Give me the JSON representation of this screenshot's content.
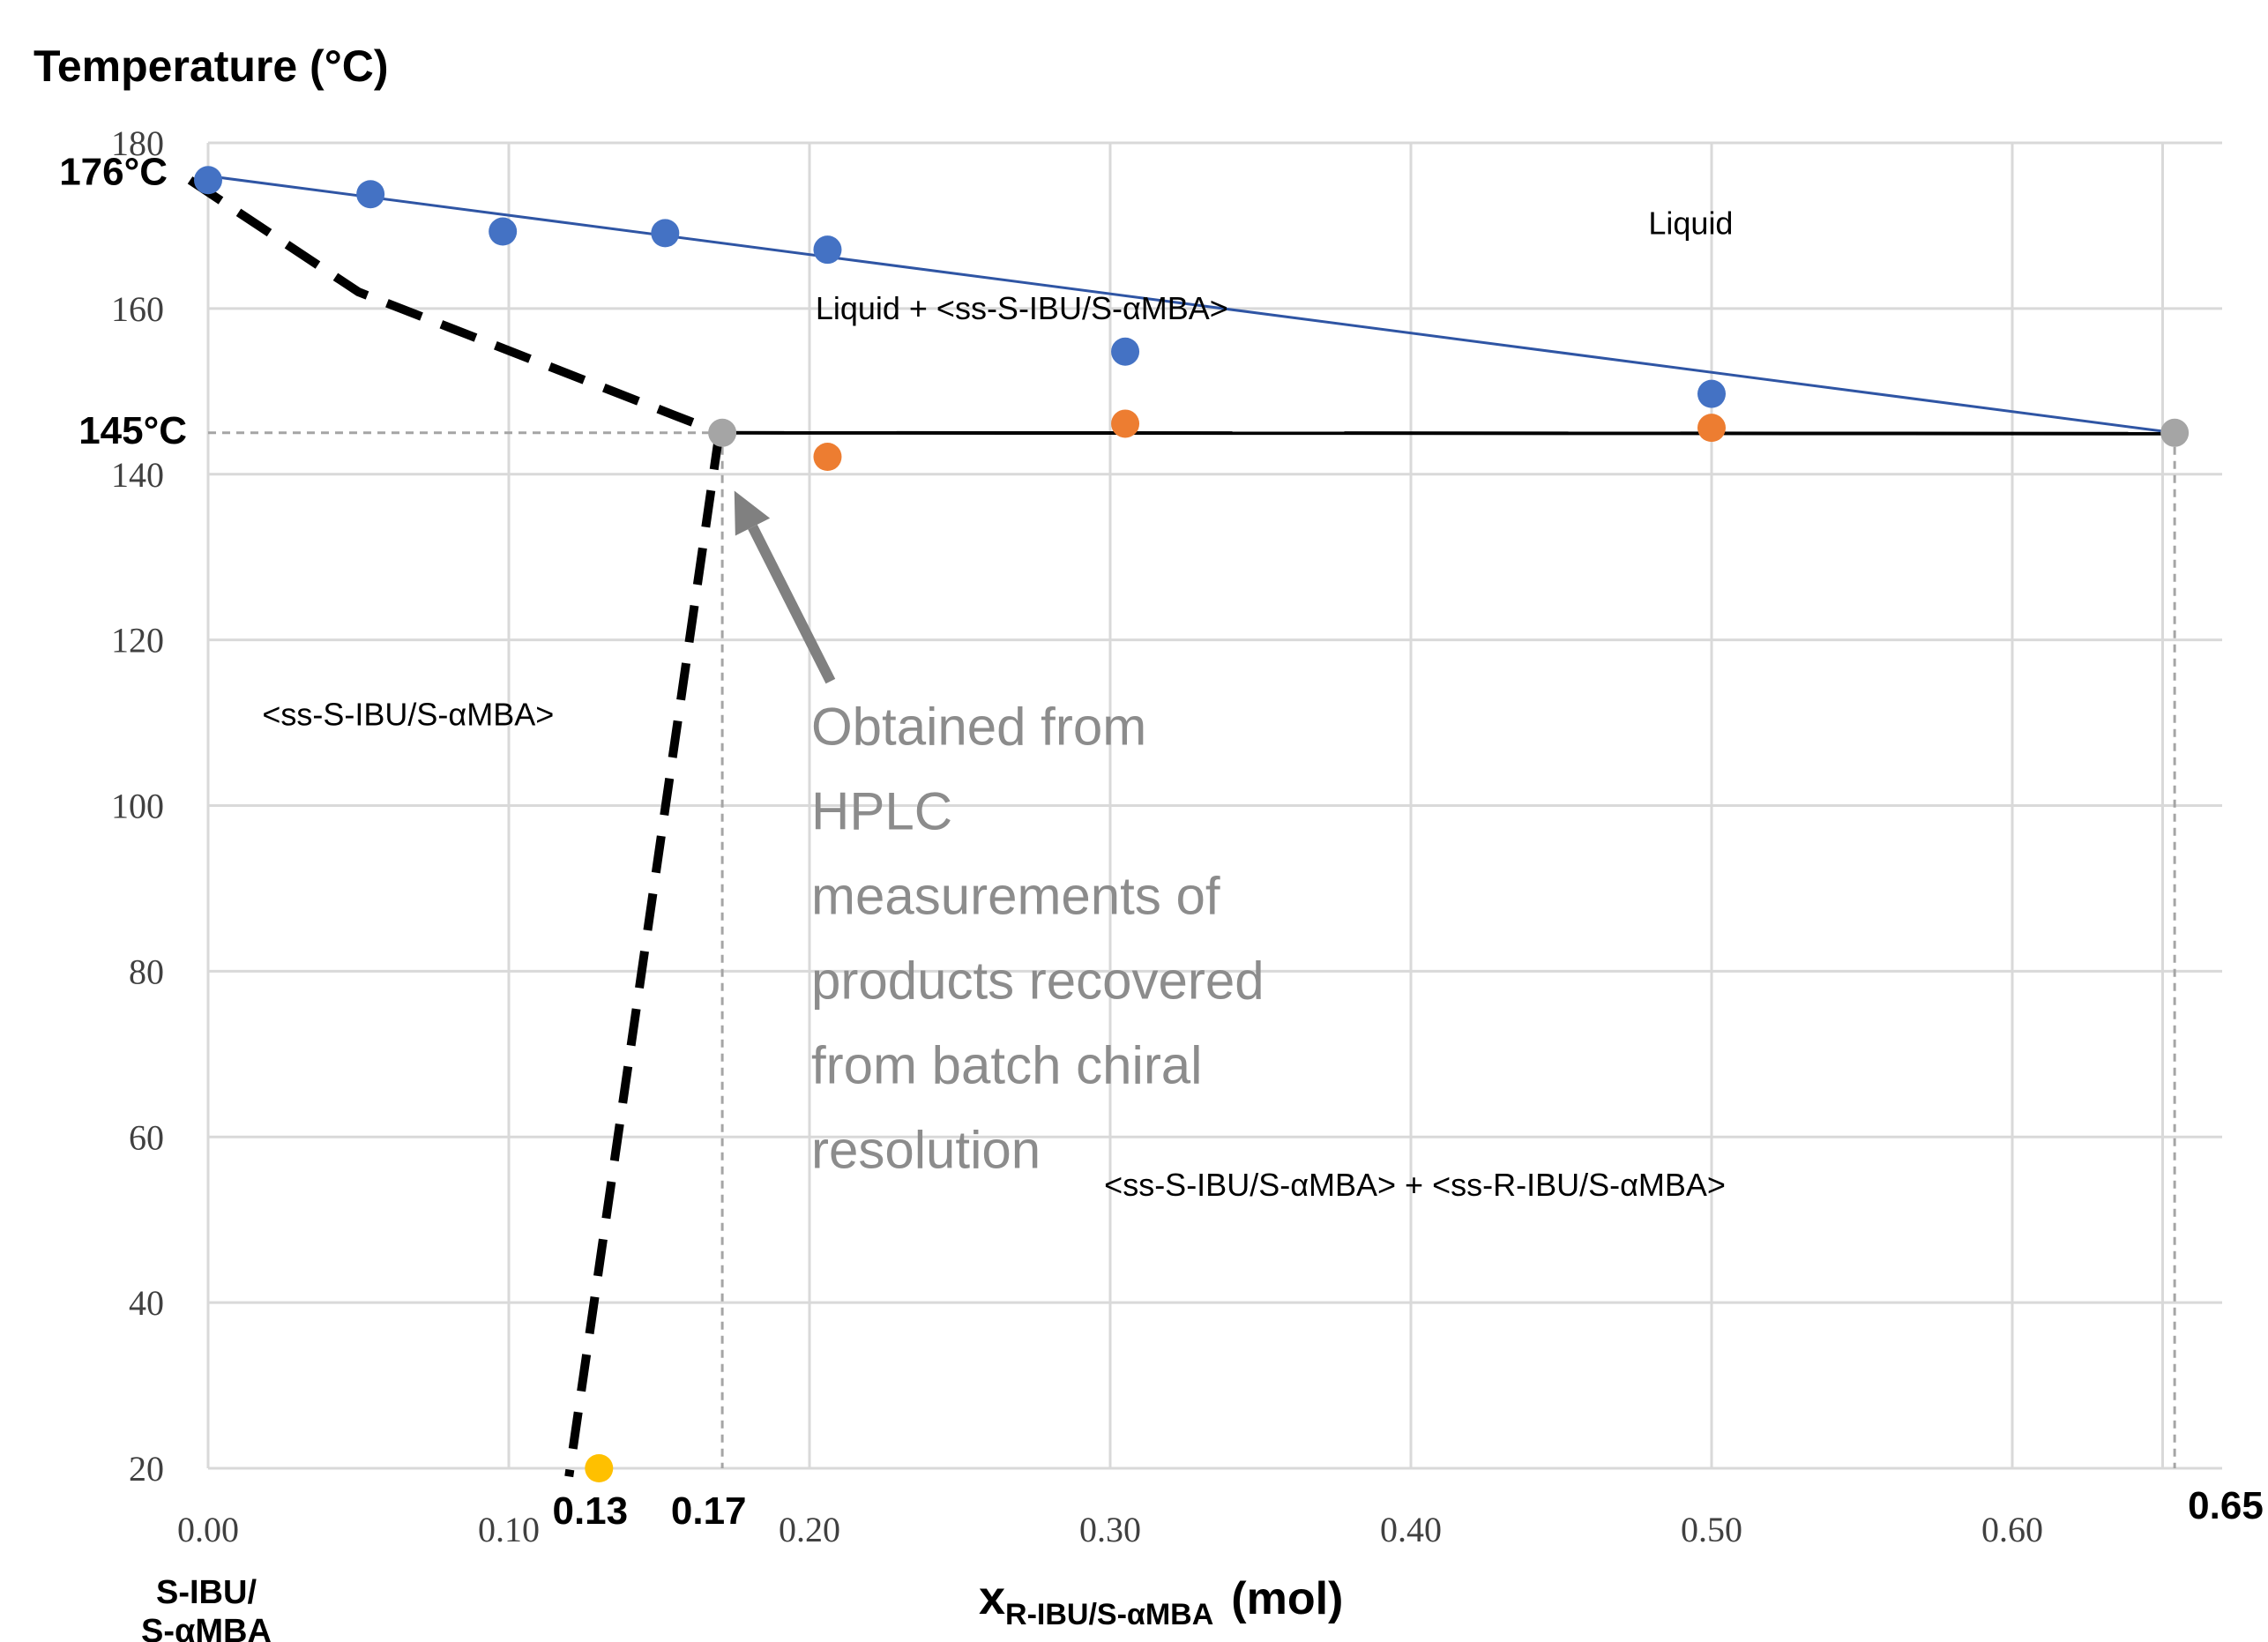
{
  "chart_data": {
    "type": "scatter",
    "title": "",
    "ylabel": "Temperature (°C)",
    "xlabel": {
      "main": "x",
      "subscript": "R-IBU/S-αMBA",
      "unit": "(mol)"
    },
    "x_origin_label": {
      "line1": "S-IBU/",
      "line2": "S-αMBA"
    },
    "xlim": [
      0,
      0.65
    ],
    "ylim": [
      20,
      180
    ],
    "xticks": [
      {
        "value": 0.0,
        "label": "0.00"
      },
      {
        "value": 0.1,
        "label": "0.10"
      },
      {
        "value": 0.2,
        "label": "0.20"
      },
      {
        "value": 0.3,
        "label": "0.30"
      },
      {
        "value": 0.4,
        "label": "0.40"
      },
      {
        "value": 0.5,
        "label": "0.50"
      },
      {
        "value": 0.6,
        "label": "0.60"
      }
    ],
    "yticks": [
      {
        "value": 20,
        "label": "20"
      },
      {
        "value": 40,
        "label": "40"
      },
      {
        "value": 60,
        "label": "60"
      },
      {
        "value": 80,
        "label": "80"
      },
      {
        "value": 100,
        "label": "100"
      },
      {
        "value": 120,
        "label": "120"
      },
      {
        "value": 140,
        "label": "140"
      },
      {
        "value": 160,
        "label": "160"
      },
      {
        "value": 180,
        "label": "180"
      }
    ],
    "grid": true,
    "colors": {
      "liquidus_points": "#4472c4",
      "solidus_points": "#ed7d31",
      "special_points": "#a5a5a5",
      "hplc_point": "#ffc000",
      "liquidus_line": "#2f55a4",
      "eutectic_line": "#000000",
      "dashed_boundary": "#000000",
      "reference_lines": "#a5a5a5",
      "annotation": "#8c8c8c"
    },
    "series": [
      {
        "key": "liquidus",
        "points": [
          {
            "x": 0.0,
            "y": 175.5
          },
          {
            "x": 0.054,
            "y": 173.8
          },
          {
            "x": 0.098,
            "y": 169.3
          },
          {
            "x": 0.152,
            "y": 169.1
          },
          {
            "x": 0.206,
            "y": 167.1
          },
          {
            "x": 0.305,
            "y": 154.8
          },
          {
            "x": 0.5,
            "y": 149.7
          }
        ]
      },
      {
        "key": "solidus",
        "points": [
          {
            "x": 0.206,
            "y": 142.1
          },
          {
            "x": 0.305,
            "y": 146.1
          },
          {
            "x": 0.5,
            "y": 145.6
          }
        ]
      },
      {
        "key": "special",
        "points": [
          {
            "x": 0.171,
            "y": 145.0
          },
          {
            "x": 0.654,
            "y": 145.0
          }
        ]
      },
      {
        "key": "hplc",
        "points": [
          {
            "x": 0.13,
            "y": 20.0
          }
        ]
      }
    ],
    "lines": {
      "liquidus_fit": [
        [
          0.0,
          176.0
        ],
        [
          0.654,
          145.0
        ]
      ],
      "eutectic": [
        [
          0.171,
          145.0
        ],
        [
          0.654,
          144.9
        ]
      ],
      "dashed_liquidus": [
        [
          -0.006,
          175.5
        ],
        [
          0.05,
          162.0
        ],
        [
          0.17,
          145.0
        ]
      ],
      "dashed_solvus": [
        [
          0.17,
          145.0
        ],
        [
          0.12,
          19.0
        ]
      ],
      "ref_horizontal": [
        [
          0.0,
          145.0
        ],
        [
          0.17,
          145.0
        ]
      ],
      "ref_vertical_a": [
        [
          0.171,
          145.0
        ],
        [
          0.171,
          20.0
        ]
      ],
      "ref_vertical_b": [
        [
          0.654,
          145.0
        ],
        [
          0.654,
          20.0
        ]
      ],
      "arrow": {
        "from": [
          0.207,
          115.0
        ],
        "to": [
          0.175,
          138.0
        ]
      }
    },
    "value_labels": [
      {
        "key": "t176",
        "text": "176°C",
        "x": 0.0,
        "y": 176.0
      },
      {
        "key": "t145",
        "text": "145°C",
        "x": 0.0,
        "y": 145.0
      },
      {
        "key": "x013",
        "text": "0.13",
        "x": 0.13
      },
      {
        "key": "x017",
        "text": "0.17",
        "x": 0.17
      },
      {
        "key": "x065",
        "text": "0.65",
        "x": 0.65
      }
    ],
    "region_labels": [
      {
        "key": "liquid",
        "text": "Liquid",
        "x": 0.479,
        "y": 169.0
      },
      {
        "key": "liquid-ss-s",
        "text": "Liquid  + <ss-S-IBU/S-αMBA>",
        "x": 0.202,
        "y": 158.7
      },
      {
        "key": "ss-s",
        "text": "<ss-S-IBU/S-αMBA>",
        "x": 0.018,
        "y": 109.7
      },
      {
        "key": "ss-s-ss-r",
        "text": "<ss-S-IBU/S-αMBA> + <ss-R-IBU/S-αMBA>",
        "x": 0.298,
        "y": 52.9
      }
    ],
    "annotation": {
      "lines": [
        "Obtained from",
        "HPLC",
        "measurements of",
        "products recovered",
        "from batch chiral",
        "resolution"
      ],
      "x": 0.2,
      "y": 109.5
    }
  }
}
